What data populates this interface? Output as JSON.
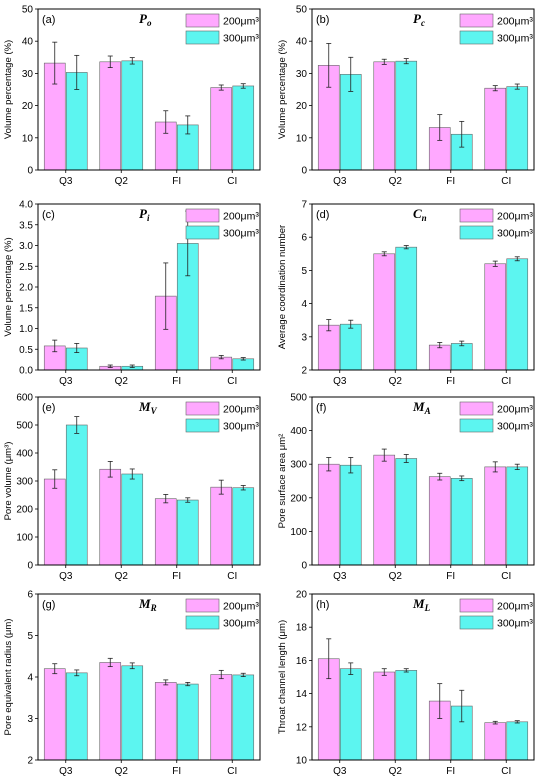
{
  "colors": {
    "series_a": "#ffa8ff",
    "series_b": "#5cf5f0",
    "frame": "#000000"
  },
  "chart_data": [
    {
      "type": "bar",
      "panel_label": "(a)",
      "title": "Po",
      "title_main": "P",
      "title_sub": "o",
      "xlabel": "",
      "ylabel": "Volume percentage (%)",
      "categories": [
        "Q3",
        "Q2",
        "FI",
        "CI"
      ],
      "ylim": [
        0,
        50
      ],
      "yticks": [
        0,
        10,
        20,
        30,
        40,
        50
      ],
      "ytick_labels": [
        "0",
        "10",
        "20",
        "30",
        "40",
        "50"
      ],
      "legend_position": "top-right",
      "series": [
        {
          "name": "200μm³",
          "values": [
            33.2,
            33.6,
            14.9,
            25.6
          ],
          "errors": [
            6.5,
            1.8,
            3.5,
            0.8
          ]
        },
        {
          "name": "300μm³",
          "values": [
            30.3,
            33.9,
            14.0,
            26.1
          ],
          "errors": [
            5.3,
            1.0,
            2.8,
            0.7
          ]
        }
      ]
    },
    {
      "type": "bar",
      "panel_label": "(b)",
      "title": "Pc",
      "title_main": "P",
      "title_sub": "c",
      "xlabel": "",
      "ylabel": "Volume percentage (%)",
      "categories": [
        "Q3",
        "Q2",
        "FI",
        "CI"
      ],
      "ylim": [
        0,
        50
      ],
      "yticks": [
        0,
        10,
        20,
        30,
        40,
        50
      ],
      "ytick_labels": [
        "0",
        "10",
        "20",
        "30",
        "40",
        "50"
      ],
      "legend_position": "top-right",
      "series": [
        {
          "name": "200μm³",
          "values": [
            32.5,
            33.6,
            13.2,
            25.4
          ],
          "errors": [
            6.8,
            0.8,
            4.0,
            0.8
          ]
        },
        {
          "name": "300μm³",
          "values": [
            29.7,
            33.8,
            11.1,
            25.9
          ],
          "errors": [
            5.3,
            0.8,
            4.0,
            0.8
          ]
        }
      ]
    },
    {
      "type": "bar",
      "panel_label": "(c)",
      "title": "Pi",
      "title_main": "P",
      "title_sub": "i",
      "xlabel": "",
      "ylabel": "Volume percentage (%)",
      "categories": [
        "Q3",
        "Q2",
        "FI",
        "CI"
      ],
      "ylim": [
        0,
        4.0
      ],
      "yticks": [
        0,
        0.5,
        1.0,
        1.5,
        2.0,
        2.5,
        3.0,
        3.5,
        4.0
      ],
      "ytick_labels": [
        "0.0",
        "0.5",
        "1.0",
        "1.5",
        "2.0",
        "2.5",
        "3.0",
        "3.5",
        "4.0"
      ],
      "legend_position": "top-right",
      "series": [
        {
          "name": "200μm³",
          "values": [
            0.58,
            0.09,
            1.78,
            0.31
          ],
          "errors": [
            0.14,
            0.03,
            0.8,
            0.04
          ]
        },
        {
          "name": "300μm³",
          "values": [
            0.53,
            0.09,
            3.05,
            0.27
          ],
          "errors": [
            0.11,
            0.03,
            0.78,
            0.03
          ]
        }
      ]
    },
    {
      "type": "bar",
      "panel_label": "(d)",
      "title": "Cn",
      "title_main": "C",
      "title_sub": "n",
      "xlabel": "",
      "ylabel": "Average coordination number",
      "categories": [
        "Q3",
        "Q2",
        "FI",
        "CI"
      ],
      "ylim": [
        2,
        7
      ],
      "yticks": [
        2,
        3,
        4,
        5,
        6,
        7
      ],
      "ytick_labels": [
        "2",
        "3",
        "4",
        "5",
        "6",
        "7"
      ],
      "legend_position": "top-right",
      "series": [
        {
          "name": "200μm³",
          "values": [
            3.35,
            5.5,
            2.75,
            5.2
          ],
          "errors": [
            0.17,
            0.06,
            0.08,
            0.08
          ]
        },
        {
          "name": "300μm³",
          "values": [
            3.38,
            5.7,
            2.8,
            5.35
          ],
          "errors": [
            0.12,
            0.05,
            0.07,
            0.06
          ]
        }
      ]
    },
    {
      "type": "bar",
      "panel_label": "(e)",
      "title": "MV",
      "title_main": "M",
      "title_sub": "V",
      "xlabel": "",
      "ylabel": "Pore volume (μm³)",
      "categories": [
        "Q3",
        "Q2",
        "FI",
        "CI"
      ],
      "ylim": [
        0,
        600
      ],
      "yticks": [
        0,
        100,
        200,
        300,
        400,
        500,
        600
      ],
      "ytick_labels": [
        "0",
        "100",
        "200",
        "300",
        "400",
        "500",
        "600"
      ],
      "legend_position": "top-right",
      "series": [
        {
          "name": "200μm³",
          "values": [
            307,
            342,
            237,
            278
          ],
          "errors": [
            33,
            28,
            15,
            25
          ]
        },
        {
          "name": "300μm³",
          "values": [
            500,
            325,
            232,
            276
          ],
          "errors": [
            30,
            18,
            8,
            8
          ]
        }
      ]
    },
    {
      "type": "bar",
      "panel_label": "(f)",
      "title": "MA",
      "title_main": "M",
      "title_sub": "A",
      "xlabel": "",
      "ylabel": "Pore surface area μm²",
      "categories": [
        "Q3",
        "Q2",
        "FI",
        "CI"
      ],
      "ylim": [
        0,
        500
      ],
      "yticks": [
        0,
        100,
        200,
        300,
        400,
        500
      ],
      "ytick_labels": [
        "0",
        "100",
        "200",
        "300",
        "400",
        "500"
      ],
      "legend_position": "top-right",
      "series": [
        {
          "name": "200μm³",
          "values": [
            300,
            327,
            263,
            292
          ],
          "errors": [
            20,
            18,
            10,
            15
          ]
        },
        {
          "name": "300μm³",
          "values": [
            297,
            317,
            258,
            292
          ],
          "errors": [
            23,
            12,
            7,
            8
          ]
        }
      ]
    },
    {
      "type": "bar",
      "panel_label": "(g)",
      "title": "MR",
      "title_main": "M",
      "title_sub": "R",
      "xlabel": "",
      "ylabel": "Pore equivalent radius (μm)",
      "categories": [
        "Q3",
        "Q2",
        "FI",
        "CI"
      ],
      "ylim": [
        2,
        6
      ],
      "yticks": [
        2,
        3,
        4,
        5,
        6
      ],
      "ytick_labels": [
        "2",
        "3",
        "4",
        "5",
        "6"
      ],
      "legend_position": "top-right",
      "series": [
        {
          "name": "200μm³",
          "values": [
            4.2,
            4.35,
            3.87,
            4.06
          ],
          "errors": [
            0.12,
            0.1,
            0.06,
            0.1
          ]
        },
        {
          "name": "300μm³",
          "values": [
            4.1,
            4.27,
            3.83,
            4.05
          ],
          "errors": [
            0.07,
            0.07,
            0.04,
            0.04
          ]
        }
      ]
    },
    {
      "type": "bar",
      "panel_label": "(h)",
      "title": "ML",
      "title_main": "M",
      "title_sub": "L",
      "xlabel": "",
      "ylabel": "Throat channel length (μm)",
      "categories": [
        "Q3",
        "Q2",
        "FI",
        "CI"
      ],
      "ylim": [
        10,
        20
      ],
      "yticks": [
        10,
        12,
        14,
        16,
        18,
        20
      ],
      "ytick_labels": [
        "10",
        "12",
        "14",
        "16",
        "18",
        "20"
      ],
      "legend_position": "top-right",
      "series": [
        {
          "name": "200μm³",
          "values": [
            16.1,
            15.3,
            13.55,
            12.25
          ],
          "errors": [
            1.2,
            0.2,
            1.05,
            0.08
          ]
        },
        {
          "name": "300μm³",
          "values": [
            15.5,
            15.4,
            13.25,
            12.3
          ],
          "errors": [
            0.35,
            0.1,
            0.95,
            0.07
          ]
        }
      ]
    }
  ]
}
